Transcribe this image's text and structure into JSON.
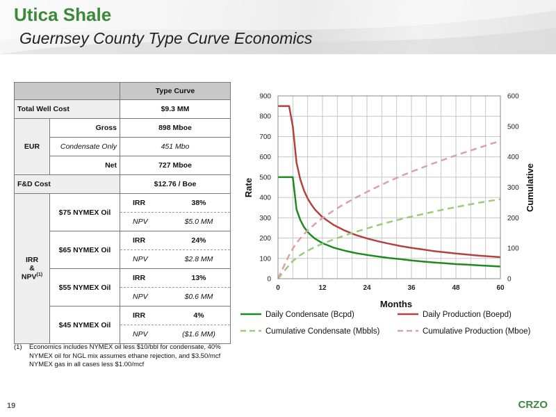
{
  "header": {
    "title": "Utica Shale",
    "subtitle": "Guernsey County Type Curve Economics"
  },
  "table": {
    "col_header": "Type Curve",
    "total_well_cost": {
      "label": "Total Well Cost",
      "value": "$9.3 MM"
    },
    "eur": {
      "label": "EUR",
      "rows": [
        {
          "label": "Gross",
          "value": "898 Mboe"
        },
        {
          "label": "Condensate Only",
          "value": "451 Mbo"
        },
        {
          "label": "Net",
          "value": "727 Mboe"
        }
      ]
    },
    "fd_cost": {
      "label": "F&D Cost",
      "value": "$12.76 / Boe"
    },
    "irr_npv": {
      "label_line1": "IRR",
      "label_line2": "&",
      "label_line3": "NPV",
      "label_sup": "(1)",
      "irr_key": "IRR",
      "npv_key": "NPV",
      "cases": [
        {
          "name": "$75 NYMEX Oil",
          "irr": "38%",
          "npv": "$5.0 MM"
        },
        {
          "name": "$65 NYMEX Oil",
          "irr": "24%",
          "npv": "$2.8 MM"
        },
        {
          "name": "$55 NYMEX Oil",
          "irr": "13%",
          "npv": "$0.6 MM"
        },
        {
          "name": "$45 NYMEX Oil",
          "irr": "4%",
          "npv": "($1.6 MM)"
        }
      ]
    }
  },
  "footnote": {
    "num": "(1)",
    "text": "Economics includes NYMEX oil less $10/bbl for condensate, 40% NYMEX oil for NGL mix assumes ethane rejection, and $3.50/mcf NYMEX gas in all cases less $1.00/mcf"
  },
  "footer": {
    "page": "19",
    "brand": "CRZO"
  },
  "chart_data": {
    "type": "line",
    "xlabel": "Months",
    "ylabel_left": "Rate",
    "ylabel_right": "Cumulative",
    "xlim": [
      0,
      60
    ],
    "ylim_left": [
      0,
      900
    ],
    "ylim_right": [
      0,
      600
    ],
    "x_ticks": [
      0,
      12,
      24,
      36,
      48,
      60
    ],
    "y_ticks_left": [
      0,
      100,
      200,
      300,
      400,
      500,
      600,
      700,
      800,
      900
    ],
    "y_ticks_right": [
      0,
      100,
      200,
      300,
      400,
      500,
      600
    ],
    "grid": true,
    "legend_position": "bottom",
    "x": [
      0,
      1,
      2,
      3,
      4,
      5,
      6,
      7,
      8,
      9,
      10,
      12,
      15,
      18,
      21,
      24,
      27,
      30,
      33,
      36,
      39,
      42,
      45,
      48,
      51,
      54,
      57,
      60
    ],
    "series": [
      {
        "name": "Daily Condensate (Bcpd)",
        "axis": "left",
        "style": "solid",
        "color": "#1e8a1e",
        "values": [
          500,
          500,
          500,
          500,
          500,
          340,
          290,
          255,
          230,
          212,
          197,
          175,
          153,
          138,
          126,
          117,
          109,
          102,
          96,
          90,
          85,
          80,
          76,
          72,
          69,
          66,
          63,
          60
        ]
      },
      {
        "name": "Daily Production (Boepd)",
        "axis": "left",
        "style": "solid",
        "color": "#b5413e",
        "values": [
          850,
          850,
          850,
          850,
          750,
          570,
          490,
          435,
          395,
          365,
          340,
          303,
          265,
          237,
          215,
          198,
          184,
          172,
          161,
          152,
          144,
          136,
          130,
          124,
          119,
          114,
          110,
          106
        ]
      },
      {
        "name": "Cumulative Condensate (Mbbls)",
        "axis": "right",
        "style": "dashed",
        "color": "#9dc97a",
        "values": [
          0,
          15,
          30,
          45,
          58,
          68,
          77,
          85,
          92,
          98,
          104,
          115,
          129,
          142,
          154,
          165,
          176,
          186,
          195,
          204,
          212,
          220,
          228,
          235,
          242,
          249,
          255,
          261
        ]
      },
      {
        "name": "Cumulative Production (Mboe)",
        "axis": "right",
        "style": "dashed",
        "color": "#dba1a5",
        "values": [
          0,
          26,
          52,
          77,
          99,
          117,
          132,
          146,
          158,
          169,
          180,
          199,
          224,
          246,
          266,
          285,
          303,
          320,
          336,
          351,
          365,
          379,
          392,
          405,
          417,
          429,
          441,
          452
        ]
      }
    ]
  }
}
